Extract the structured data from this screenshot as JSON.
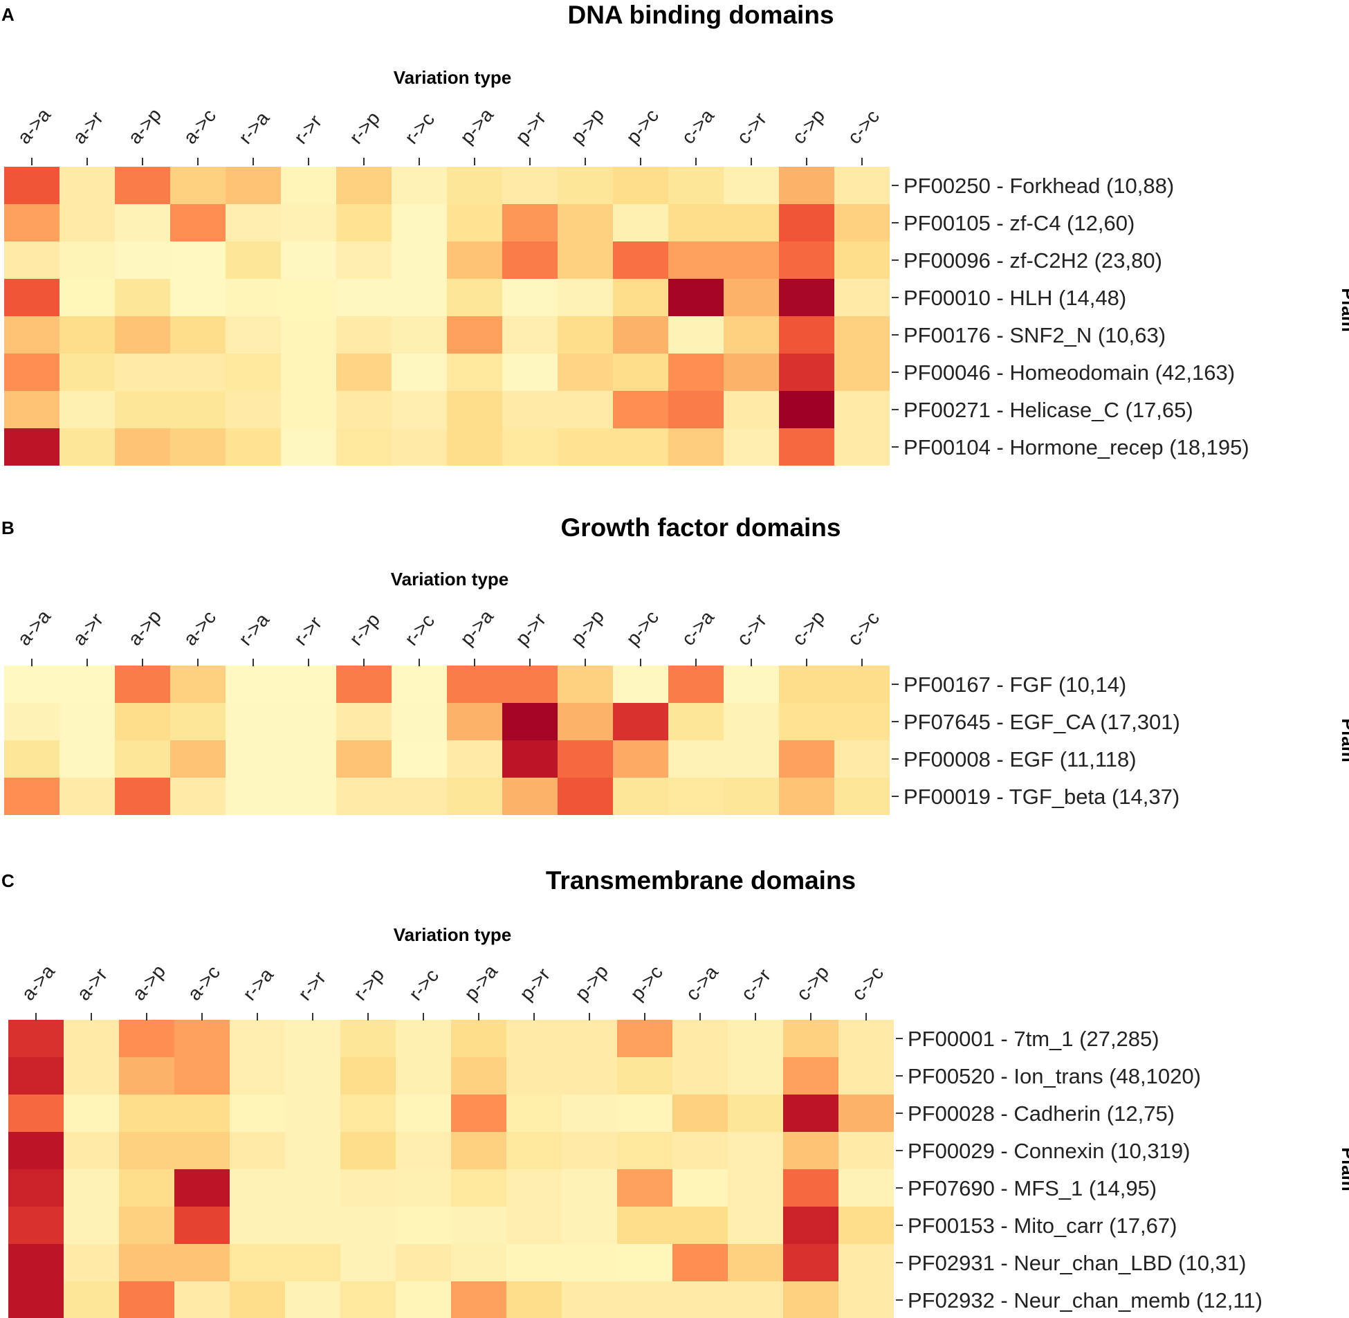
{
  "chart_data": [
    {
      "type": "heatmap",
      "panel_letter": "A",
      "title": "DNA binding domains",
      "xlabel": "Variation type",
      "ylabel": "Pfam",
      "value_scale": [
        0,
        10
      ],
      "columns": [
        "a->a",
        "a->r",
        "a->p",
        "a->c",
        "r->a",
        "r->r",
        "r->p",
        "r->c",
        "p->a",
        "p->r",
        "p->p",
        "p->c",
        "c->a",
        "c->r",
        "c->p",
        "c->c"
      ],
      "rows": [
        "PF00250 - Forkhead (10,88)",
        "PF00105 - zf-C4 (12,60)",
        "PF00096 - zf-C2H2 (23,80)",
        "PF00010 - HLH (14,48)",
        "PF00176 - SNF2_N (10,63)",
        "PF00046 - Homeodomain (42,163)",
        "PF00271 - Helicase_C (17,65)",
        "PF00104 - Hormone_recep (18,195)"
      ],
      "values": [
        [
          6.5,
          1.5,
          5.5,
          3,
          3.5,
          0.8,
          3,
          1,
          2,
          1.5,
          2,
          2.5,
          2,
          1.2,
          4,
          1.5
        ],
        [
          4.5,
          1.5,
          1,
          5,
          1.3,
          1.1,
          2.2,
          0.6,
          2.2,
          4.8,
          3,
          1.2,
          2.5,
          2.5,
          6.5,
          3
        ],
        [
          1.5,
          0.9,
          0.6,
          0.5,
          2,
          0.6,
          1.3,
          0.6,
          3.5,
          5.5,
          3,
          5.8,
          4.5,
          4.5,
          6,
          2.5
        ],
        [
          6.5,
          0.7,
          2,
          0.5,
          0.8,
          0.7,
          0.6,
          0.6,
          2,
          0.6,
          1,
          2.5,
          9.5,
          4,
          9.3,
          1.5
        ],
        [
          3.5,
          2.5,
          3.5,
          2.5,
          1.3,
          0.8,
          1.5,
          1.2,
          4.5,
          1.3,
          2.5,
          4,
          1,
          3,
          6.5,
          3
        ],
        [
          5,
          2,
          1.5,
          1.5,
          1.8,
          0.8,
          2.8,
          0.6,
          1.8,
          0.6,
          2.8,
          2.5,
          5,
          4,
          7.5,
          3
        ],
        [
          3.5,
          1.2,
          2,
          2,
          1.5,
          0.8,
          1.6,
          1.3,
          2.5,
          1.5,
          1.5,
          5,
          5.5,
          1.5,
          10,
          1.5
        ],
        [
          8.5,
          2,
          3.5,
          3,
          2.2,
          0.6,
          1.8,
          1.5,
          2.5,
          1.8,
          2.2,
          2.2,
          3.2,
          1.3,
          6,
          1.5
        ]
      ]
    },
    {
      "type": "heatmap",
      "panel_letter": "B",
      "title": "Growth factor domains",
      "xlabel": "Variation type",
      "ylabel": "Pfam",
      "value_scale": [
        0,
        10
      ],
      "columns": [
        "a->a",
        "a->r",
        "a->p",
        "a->c",
        "r->a",
        "r->r",
        "r->p",
        "r->c",
        "p->a",
        "p->r",
        "p->p",
        "p->c",
        "c->a",
        "c->r",
        "c->p",
        "c->c"
      ],
      "rows": [
        "PF00167 - FGF (10,14)",
        "PF07645 - EGF_CA (17,301)",
        "PF00008 - EGF (11,118)",
        "PF00019 - TGF_beta (14,37)"
      ],
      "values": [
        [
          0.5,
          0.5,
          5.5,
          3,
          0.5,
          0.5,
          5.5,
          0.5,
          5.5,
          5.5,
          3,
          0.6,
          5.5,
          0.6,
          2.5,
          2.5
        ],
        [
          1,
          0.6,
          2.5,
          2,
          0.6,
          0.6,
          1.5,
          0.6,
          4,
          9.5,
          4,
          7.5,
          2,
          1,
          2.2,
          2.2
        ],
        [
          2,
          0.6,
          2,
          3.5,
          0.6,
          0.6,
          3.5,
          0.5,
          1.5,
          8.5,
          6,
          4.2,
          1,
          1,
          4.5,
          1.5
        ],
        [
          5,
          1.5,
          6,
          1.5,
          0.6,
          0.6,
          1.5,
          1.5,
          2,
          4,
          6.5,
          2,
          1.8,
          2,
          3.5,
          2
        ]
      ]
    },
    {
      "type": "heatmap",
      "panel_letter": "C",
      "title": "Transmembrane domains",
      "xlabel": "Variation type",
      "ylabel": "Pfam",
      "value_scale": [
        0,
        10
      ],
      "columns": [
        "a->a",
        "a->r",
        "a->p",
        "a->c",
        "r->a",
        "r->r",
        "r->p",
        "r->c",
        "p->a",
        "p->r",
        "p->p",
        "p->c",
        "c->a",
        "c->r",
        "c->p",
        "c->c"
      ],
      "rows": [
        "PF00001 - 7tm_1 (27,285)",
        "PF00520 - Ion_trans (48,1020)",
        "PF00028 - Cadherin (12,75)",
        "PF00029 - Connexin (10,319)",
        "PF07690 - MFS_1 (14,95)",
        "PF00153 - Mito_carr (17,67)",
        "PF02931 - Neur_chan_LBD (10,31)",
        "PF02932 - Neur_chan_memb (12,11)"
      ],
      "values": [
        [
          7.5,
          1.5,
          5,
          4.5,
          1.3,
          1,
          2,
          1.2,
          2.5,
          1.5,
          1.5,
          4.5,
          1.5,
          1.2,
          3,
          1.5
        ],
        [
          8,
          1.5,
          4,
          4.5,
          1.3,
          1,
          2.5,
          1.2,
          3,
          1.5,
          1.5,
          2,
          1.5,
          1.2,
          4.5,
          1.5
        ],
        [
          6,
          0.8,
          2.5,
          2.5,
          0.8,
          1,
          1.8,
          0.8,
          5,
          1.4,
          1,
          0.8,
          3,
          2,
          8.5,
          4
        ],
        [
          8.5,
          1.5,
          3,
          3,
          1.5,
          1,
          2.5,
          1.3,
          3,
          1.8,
          1.5,
          1.8,
          1.5,
          1.3,
          3.5,
          1.5
        ],
        [
          8,
          1,
          2.5,
          8.5,
          1,
          1,
          1.3,
          1.2,
          1.8,
          1.3,
          1,
          4.5,
          0.8,
          1.3,
          6,
          1
        ],
        [
          7.5,
          1,
          3,
          7,
          1,
          1,
          1,
          0.8,
          1,
          1.3,
          1,
          2.5,
          2.5,
          1.3,
          8,
          2.5
        ],
        [
          8.5,
          1.5,
          3.5,
          3.5,
          1.8,
          1.8,
          1,
          1.5,
          1.2,
          0.8,
          0.8,
          0.7,
          5,
          3,
          7.5,
          1.5
        ],
        [
          8.5,
          2,
          5.5,
          1.5,
          2.5,
          1,
          1.8,
          0.8,
          4.5,
          2.5,
          1.5,
          1.5,
          1.5,
          1.5,
          3,
          1.5
        ]
      ]
    }
  ]
}
